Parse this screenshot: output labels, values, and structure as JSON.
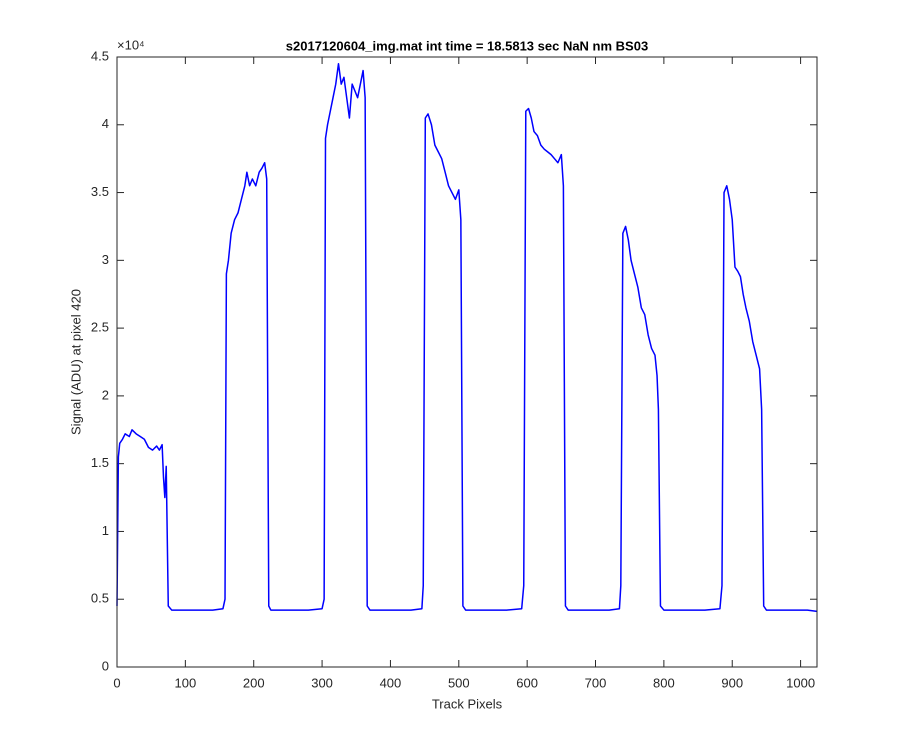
{
  "chart_data": {
    "type": "line",
    "title": "s2017120604_img.mat int time = 18.5813 sec  NaN nm BS03",
    "x_label": "Track Pixels",
    "y_label": "Signal (ADU) at pixel 420",
    "y_exponent_label": "×10⁴",
    "xlim": [
      0,
      1024
    ],
    "xticks": [
      0,
      100,
      200,
      300,
      400,
      500,
      600,
      700,
      800,
      900,
      1000
    ],
    "ylim": [
      0,
      4.5
    ],
    "yticks": [
      0,
      0.5,
      1,
      1.5,
      2,
      2.5,
      3,
      3.5,
      4,
      4.5
    ],
    "series": [
      {
        "color": "#0000ff",
        "x": [
          0,
          2,
          4,
          8,
          12,
          18,
          22,
          28,
          34,
          40,
          46,
          52,
          58,
          62,
          66,
          68,
          70,
          72,
          75,
          80,
          100,
          120,
          140,
          155,
          158,
          160,
          163,
          167,
          172,
          177,
          182,
          187,
          190,
          194,
          198,
          203,
          208,
          212,
          216,
          219,
          222,
          225,
          250,
          280,
          300,
          303,
          305,
          308,
          312,
          316,
          320,
          324,
          328,
          332,
          336,
          340,
          344,
          348,
          352,
          356,
          360,
          363,
          366,
          370,
          400,
          430,
          446,
          448,
          451,
          455,
          460,
          465,
          470,
          475,
          480,
          485,
          490,
          495,
          500,
          503,
          506,
          510,
          540,
          570,
          592,
          595,
          598,
          602,
          606,
          610,
          615,
          620,
          625,
          630,
          635,
          640,
          645,
          650,
          653,
          656,
          660,
          690,
          720,
          735,
          737,
          740,
          744,
          748,
          752,
          757,
          762,
          767,
          772,
          777,
          782,
          787,
          790,
          792,
          795,
          800,
          830,
          860,
          882,
          885,
          888,
          892,
          896,
          900,
          904,
          908,
          912,
          916,
          920,
          925,
          930,
          935,
          940,
          943,
          946,
          950,
          980,
          1010,
          1024
        ],
        "values": [
          0.45,
          1.55,
          1.65,
          1.68,
          1.72,
          1.7,
          1.75,
          1.72,
          1.7,
          1.68,
          1.62,
          1.6,
          1.63,
          1.6,
          1.64,
          1.4,
          1.25,
          1.48,
          0.45,
          0.42,
          0.42,
          0.42,
          0.42,
          0.43,
          0.5,
          2.9,
          3.0,
          3.2,
          3.3,
          3.35,
          3.45,
          3.55,
          3.65,
          3.55,
          3.6,
          3.55,
          3.65,
          3.68,
          3.72,
          3.6,
          0.45,
          0.42,
          0.42,
          0.42,
          0.43,
          0.5,
          3.9,
          4.0,
          4.1,
          4.2,
          4.3,
          4.45,
          4.3,
          4.35,
          4.2,
          4.05,
          4.3,
          4.25,
          4.2,
          4.3,
          4.4,
          4.2,
          0.45,
          0.42,
          0.42,
          0.42,
          0.43,
          0.6,
          4.05,
          4.08,
          4.0,
          3.85,
          3.8,
          3.75,
          3.65,
          3.55,
          3.5,
          3.45,
          3.52,
          3.3,
          0.45,
          0.42,
          0.42,
          0.42,
          0.43,
          0.6,
          4.1,
          4.12,
          4.05,
          3.95,
          3.92,
          3.85,
          3.82,
          3.8,
          3.78,
          3.75,
          3.72,
          3.78,
          3.55,
          0.45,
          0.42,
          0.42,
          0.42,
          0.43,
          0.6,
          3.2,
          3.25,
          3.15,
          3.0,
          2.9,
          2.8,
          2.65,
          2.6,
          2.45,
          2.35,
          2.3,
          2.15,
          1.9,
          0.45,
          0.42,
          0.42,
          0.42,
          0.43,
          0.6,
          3.5,
          3.55,
          3.45,
          3.3,
          2.95,
          2.92,
          2.88,
          2.75,
          2.65,
          2.55,
          2.4,
          2.3,
          2.2,
          1.9,
          0.45,
          0.42,
          0.42,
          0.42,
          0.41
        ]
      }
    ]
  }
}
